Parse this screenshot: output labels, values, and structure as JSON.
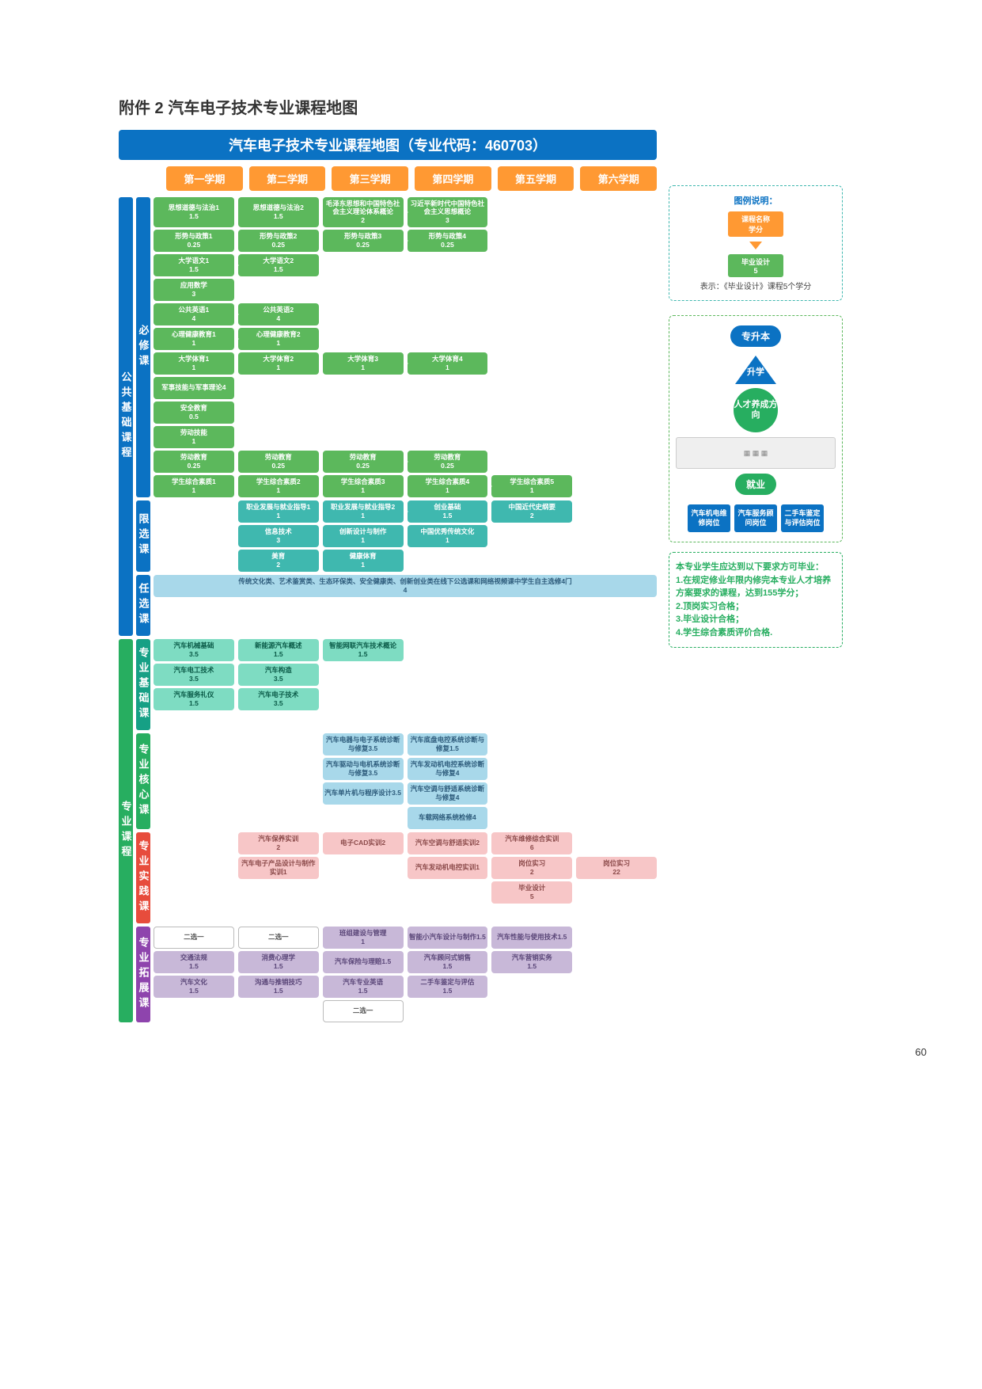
{
  "page_title": "附件 2 汽车电子技术专业课程地图",
  "banner": "汽车电子技术专业课程地图（专业代码：460703）",
  "semesters": [
    "第一学期",
    "第二学期",
    "第三学期",
    "第四学期",
    "第五学期",
    "第六学期"
  ],
  "colors": {
    "banner": "#0b72c3",
    "sem": "#ff9933",
    "required": "#5cb85c",
    "limited": "#3fb8af",
    "optional": "#4aa3df",
    "prof_basic": "#7edcc2",
    "core": "#a8d8ea",
    "practice": "#f7c6c7",
    "extension": "#c8b8d8"
  },
  "groups": {
    "public_label": "公共基础课程",
    "required_label": "必修课",
    "limited_label": "限选课",
    "optional_label": "任选课",
    "prof_label": "专业课程",
    "prof_basic_label": "专业基础课",
    "core_label": "专业核心课",
    "practice_label": "专业实践课",
    "extension_label": "专业拓展课"
  },
  "required": [
    [
      {
        "n": "思想道德与法治1",
        "c": "1.5",
        "a": 1
      },
      {
        "n": "思想道德与法治2",
        "c": "1.5",
        "a": 1
      },
      {
        "n": "毛泽东思想和中国特色社会主义理论体系概论",
        "c": "2",
        "a": 1
      },
      {
        "n": "习近平新时代中国特色社会主义思想概论",
        "c": "3"
      },
      {},
      {}
    ],
    [
      {
        "n": "形势与政策1",
        "c": "0.25",
        "a": 1
      },
      {
        "n": "形势与政策2",
        "c": "0.25",
        "a": 1
      },
      {
        "n": "形势与政策3",
        "c": "0.25",
        "a": 1
      },
      {
        "n": "形势与政策4",
        "c": "0.25"
      },
      {},
      {}
    ],
    [
      {
        "n": "大学语文1",
        "c": "1.5",
        "a": 1
      },
      {
        "n": "大学语文2",
        "c": "1.5"
      },
      {},
      {},
      {},
      {}
    ],
    [
      {
        "n": "应用数学",
        "c": "3"
      },
      {},
      {},
      {},
      {},
      {}
    ],
    [
      {
        "n": "公共英语1",
        "c": "4",
        "a": 1
      },
      {
        "n": "公共英语2",
        "c": "4"
      },
      {},
      {},
      {},
      {}
    ],
    [
      {
        "n": "心理健康教育1",
        "c": "1",
        "a": 1
      },
      {
        "n": "心理健康教育2",
        "c": "1"
      },
      {},
      {},
      {},
      {}
    ],
    [
      {
        "n": "大学体育1",
        "c": "1",
        "a": 1
      },
      {
        "n": "大学体育2",
        "c": "1",
        "a": 1
      },
      {
        "n": "大学体育3",
        "c": "1",
        "a": 1
      },
      {
        "n": "大学体育4",
        "c": "1"
      },
      {},
      {}
    ],
    [
      {
        "n": "军事技能与军事理论4",
        "c": ""
      },
      {},
      {},
      {},
      {},
      {}
    ],
    [
      {
        "n": "安全教育",
        "c": "0.5"
      },
      {},
      {},
      {},
      {},
      {}
    ],
    [
      {
        "n": "劳动技能",
        "c": "1"
      },
      {},
      {},
      {},
      {},
      {}
    ],
    [
      {
        "n": "劳动教育",
        "c": "0.25",
        "a": 1
      },
      {
        "n": "劳动教育",
        "c": "0.25",
        "a": 1
      },
      {
        "n": "劳动教育",
        "c": "0.25",
        "a": 1
      },
      {
        "n": "劳动教育",
        "c": "0.25"
      },
      {},
      {}
    ],
    [
      {
        "n": "学生综合素质1",
        "c": "1",
        "a": 1
      },
      {
        "n": "学生综合素质2",
        "c": "1",
        "a": 1
      },
      {
        "n": "学生综合素质3",
        "c": "1",
        "a": 1
      },
      {
        "n": "学生综合素质4",
        "c": "1",
        "a": 1
      },
      {
        "n": "学生综合素质5",
        "c": "1"
      },
      {}
    ]
  ],
  "limited": [
    [
      {},
      {
        "n": "职业发展与就业指导1",
        "c": "1",
        "a": 1
      },
      {
        "n": "职业发展与就业指导2",
        "c": "1",
        "a": 1
      },
      {
        "n": "创业基础",
        "c": "1.5"
      },
      {
        "n": "中国近代史纲要",
        "c": "2"
      },
      {}
    ],
    [
      {},
      {
        "n": "信息技术",
        "c": "3"
      },
      {
        "n": "创新设计与制作",
        "c": "1"
      },
      {
        "n": "中国优秀传统文化",
        "c": "1"
      },
      {},
      {}
    ],
    [
      {},
      {
        "n": "美育",
        "c": "2"
      },
      {
        "n": "健康体育",
        "c": "1"
      },
      {},
      {},
      {}
    ]
  ],
  "optional_text": "传统文化类、艺术鉴赏类、生态环保类、安全健康类、创新创业类在线下公选课和网络视频课中学生自主选修4门",
  "optional_credits": "4",
  "prof_basic": [
    [
      {
        "n": "汽车机械基础",
        "c": "3.5"
      },
      {
        "n": "新能源汽车概述",
        "c": "1.5"
      },
      {
        "n": "智能网联汽车技术概论",
        "c": "1.5"
      },
      {},
      {},
      {}
    ],
    [
      {
        "n": "汽车电工技术",
        "c": "3.5"
      },
      {
        "n": "汽车构造",
        "c": "3.5"
      },
      {},
      {},
      {},
      {}
    ],
    [
      {
        "n": "汽车服务礼仪",
        "c": "1.5"
      },
      {
        "n": "汽车电子技术",
        "c": "3.5"
      },
      {},
      {},
      {},
      {}
    ]
  ],
  "core": [
    [
      {},
      {},
      {
        "n": "汽车电器与电子系统诊断与修复3.5",
        "c": ""
      },
      {
        "n": "汽车底盘电控系统诊断与修复1.5",
        "c": ""
      },
      {},
      {}
    ],
    [
      {},
      {},
      {
        "n": "汽车驱动与电机系统诊断与修复3.5",
        "c": ""
      },
      {
        "n": "汽车发动机电控系统诊断与修复4",
        "c": ""
      },
      {},
      {}
    ],
    [
      {},
      {},
      {
        "n": "汽车单片机与程序设计3.5",
        "c": ""
      },
      {
        "n": "汽车空调与舒适系统诊断与修复4",
        "c": ""
      },
      {},
      {}
    ],
    [
      {},
      {},
      {},
      {
        "n": "车载网络系统检修4",
        "c": ""
      },
      {},
      {}
    ]
  ],
  "practice": [
    [
      {},
      {
        "n": "汽车保养实训",
        "c": "2"
      },
      {
        "n": "电子CAD实训2",
        "c": ""
      },
      {
        "n": "汽车空调与舒适实训2",
        "c": ""
      },
      {
        "n": "汽车维修综合实训",
        "c": "6"
      },
      {}
    ],
    [
      {},
      {
        "n": "汽车电子产品设计与制作实训1",
        "c": ""
      },
      {},
      {
        "n": "汽车发动机电控实训1",
        "c": ""
      },
      {
        "n": "岗位实习",
        "c": "2"
      },
      {
        "n": "岗位实习",
        "c": "22"
      }
    ],
    [
      {},
      {},
      {},
      {},
      {
        "n": "毕业设计",
        "c": "5"
      },
      {}
    ]
  ],
  "ext_choice": "二选一",
  "extension": [
    [
      {
        "n": "二选一",
        "c": "",
        "w": 1
      },
      {
        "n": "二选一",
        "c": "",
        "w": 1
      },
      {
        "n": "班组建设与管理",
        "c": "1"
      },
      {
        "n": "智能小汽车设计与制作1.5",
        "c": ""
      },
      {
        "n": "汽车性能与使用技术1.5",
        "c": ""
      },
      {}
    ],
    [
      {
        "n": "交通法规",
        "c": "1.5"
      },
      {
        "n": "消费心理学",
        "c": "1.5"
      },
      {
        "n": "汽车保险与理赔1.5",
        "c": ""
      },
      {
        "n": "汽车顾问式销售",
        "c": "1.5"
      },
      {
        "n": "汽车营销实务",
        "c": "1.5"
      },
      {}
    ],
    [
      {
        "n": "汽车文化",
        "c": "1.5"
      },
      {
        "n": "沟通与推销技巧",
        "c": "1.5"
      },
      {
        "n": "汽车专业英语",
        "c": "1.5"
      },
      {
        "n": "二手车鉴定与评估",
        "c": "1.5"
      },
      {},
      {}
    ],
    [
      {},
      {},
      {
        "n": "二选一",
        "c": "",
        "w": 1
      },
      {},
      {},
      {}
    ]
  ],
  "legend": {
    "title": "图例说明：",
    "sample_name": "课程名称",
    "sample_credit": "学分",
    "sample2_name": "毕业设计",
    "sample2_credit": "5",
    "text": "表示：《毕业设计》课程5个学分"
  },
  "path": {
    "top": "专升本",
    "up": "升学",
    "circle": "人才养成方向",
    "employ": "就业",
    "jobs": [
      "汽车机电维修岗位",
      "汽车服务顾问岗位",
      "二手车鉴定与评估岗位"
    ]
  },
  "requirements": {
    "title": "本专业学生应达到以下要求方可毕业：",
    "items": [
      "1.在规定修业年限内修完本专业人才培养方案要求的课程，达到155学分；",
      "2.顶岗实习合格；",
      "3.毕业设计合格；",
      "4.学生综合素质评价合格."
    ]
  },
  "page_number": "60"
}
